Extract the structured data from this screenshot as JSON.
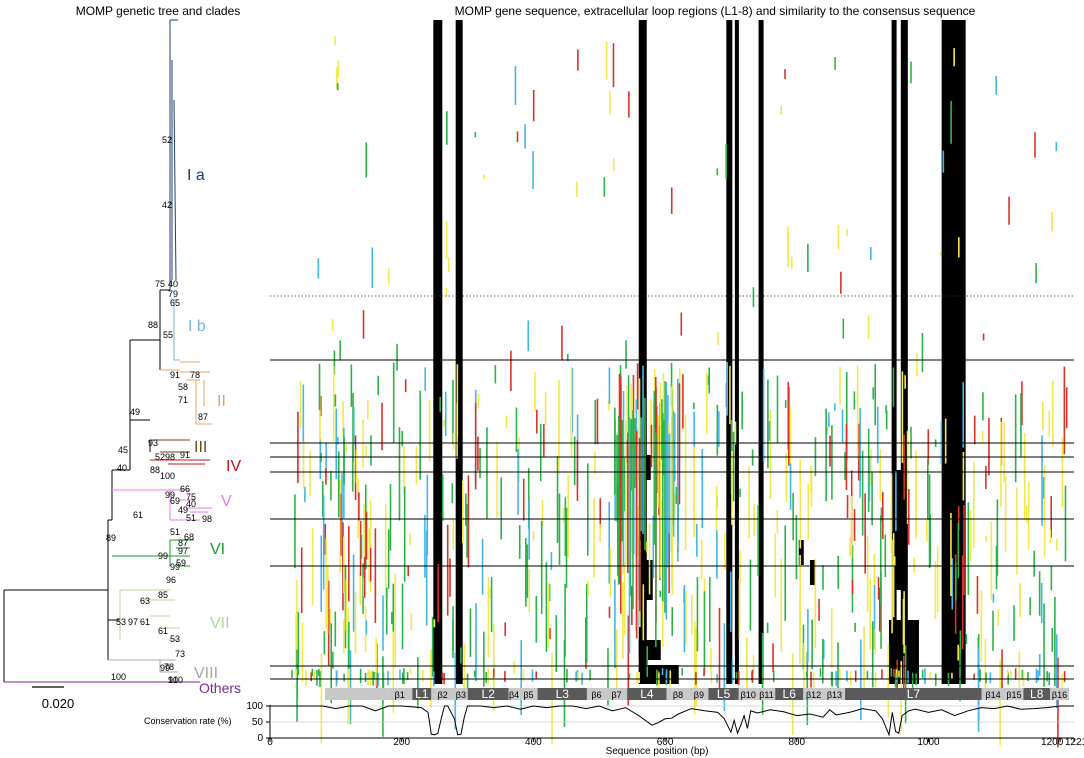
{
  "titles": {
    "left": "MOMP genetic tree and clades",
    "right": "MOMP gene sequence, extracellular loop regions (L1-8) and similarity to the consensus sequence"
  },
  "scale_bar": {
    "label": "0.020",
    "value": 0.02
  },
  "clades": [
    {
      "label": "I a",
      "color": "#1f3d6e"
    },
    {
      "label": "I b",
      "color": "#7fb2dd"
    },
    {
      "label": "II",
      "color": "#e8a06a"
    },
    {
      "label": "III",
      "color": "#6b4a12"
    },
    {
      "label": "IV",
      "color": "#c0141c"
    },
    {
      "label": "V",
      "color": "#e37fe0"
    },
    {
      "label": "VI",
      "color": "#1b9a2e"
    },
    {
      "label": "VII",
      "color": "#b5d69a"
    },
    {
      "label": "VIII",
      "color": "#a8a8a8"
    },
    {
      "label": "Others",
      "color": "#7b2a92"
    }
  ],
  "bootstrap_values": [
    "52",
    "42",
    "75",
    "40",
    "79",
    "65",
    "88",
    "55",
    "78",
    "91",
    "58",
    "71",
    "87",
    "49",
    "45",
    "93",
    "52",
    "98",
    "91",
    "88",
    "100",
    "40",
    "66",
    "75",
    "99",
    "40",
    "69",
    "49",
    "51",
    "98",
    "61",
    "51",
    "68",
    "99",
    "87",
    "97",
    "89",
    "99",
    "59",
    "96",
    "85",
    "63",
    "53",
    "97",
    "61",
    "61",
    "53",
    "73",
    "99",
    "78",
    "100",
    "100",
    "91"
  ],
  "region_bar": {
    "labels": [
      "β1",
      "L1",
      "β2",
      "β3",
      "L2",
      "β4",
      "β5",
      "L3",
      "β6",
      "β7",
      "L4",
      "β8",
      "β9",
      "L5",
      "β10",
      "β11",
      "L6",
      "β12",
      "β13",
      "L7",
      "β14",
      "β15",
      "L8",
      "β16"
    ]
  },
  "conservation": {
    "ylabel": "Conservation rate (%)",
    "yticks": [
      "100",
      "50",
      "0"
    ]
  },
  "chart_data": {
    "type": "line",
    "title": "",
    "xlabel": "Sequence position (bp)",
    "ylabel": "Conservation rate (%)",
    "xlim": [
      0,
      1221
    ],
    "ylim": [
      0,
      100
    ],
    "xticks": [
      "0",
      "200",
      "400",
      "600",
      "800",
      "1000",
      "1200",
      "1221"
    ],
    "x": [
      0,
      40,
      80,
      100,
      120,
      140,
      160,
      180,
      200,
      230,
      240,
      245,
      250,
      255,
      260,
      265,
      270,
      280,
      285,
      290,
      295,
      300,
      320,
      340,
      360,
      380,
      400,
      420,
      440,
      460,
      480,
      500,
      520,
      540,
      560,
      570,
      580,
      590,
      600,
      610,
      620,
      640,
      660,
      680,
      690,
      700,
      705,
      710,
      715,
      720,
      725,
      730,
      740,
      760,
      780,
      800,
      820,
      840,
      850,
      860,
      880,
      900,
      920,
      930,
      940,
      945,
      950,
      955,
      960,
      970,
      980,
      1000,
      1020,
      1040,
      1060,
      1080,
      1100,
      1120,
      1140,
      1160,
      1180,
      1200,
      1221
    ],
    "y": [
      100,
      100,
      100,
      92,
      100,
      100,
      85,
      100,
      100,
      95,
      80,
      12,
      10,
      15,
      60,
      100,
      100,
      60,
      10,
      12,
      65,
      100,
      100,
      95,
      100,
      90,
      100,
      95,
      100,
      100,
      92,
      100,
      85,
      95,
      70,
      55,
      40,
      48,
      60,
      62,
      75,
      92,
      85,
      80,
      60,
      18,
      55,
      15,
      40,
      70,
      30,
      85,
      78,
      88,
      82,
      70,
      75,
      65,
      88,
      72,
      80,
      92,
      85,
      60,
      10,
      80,
      20,
      15,
      70,
      85,
      90,
      80,
      88,
      70,
      85,
      95,
      92,
      100,
      90,
      92,
      95,
      100,
      100
    ]
  }
}
